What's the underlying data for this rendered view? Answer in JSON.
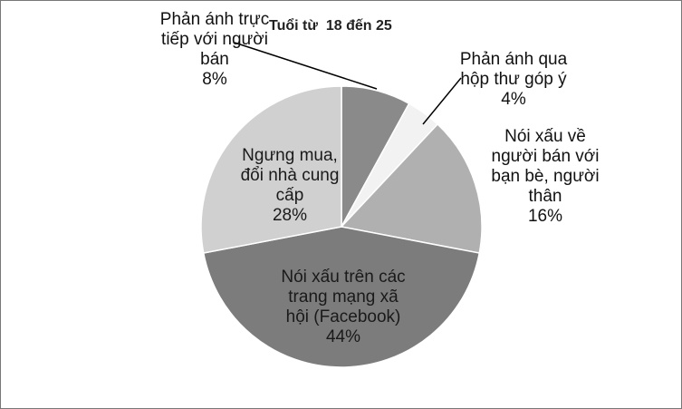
{
  "chart_data": {
    "type": "pie",
    "title": "Tuổi từ  18 đến 25",
    "slices": [
      {
        "label": "Phản ánh trực tiếp với người bán",
        "value": 8,
        "value_label": "8%",
        "color": "#8a8a8a",
        "label_lines": [
          "Phản ánh trực",
          "tiếp với người",
          "bán"
        ]
      },
      {
        "label": "Phản ánh qua hộp thư góp ý",
        "value": 4,
        "value_label": "4%",
        "color": "#f2f2f2",
        "label_lines": [
          "Phản ánh qua",
          "hộp thư góp ý"
        ]
      },
      {
        "label": "Nói xấu về người bán với bạn bè, người thân",
        "value": 16,
        "value_label": "16%",
        "color": "#b0b0b0",
        "label_lines": [
          "Nói xấu về",
          "người bán với",
          "bạn bè, người",
          "thân"
        ]
      },
      {
        "label": "Nói xấu trên các trang mạng xã hội (Facebook)",
        "value": 44,
        "value_label": "44%",
        "color": "#7c7c7c",
        "label_lines": [
          "Nói xấu trên các",
          "trang mạng xã",
          "hội (Facebook)"
        ]
      },
      {
        "label": "Ngưng mua, đổi nhà cung cấp",
        "value": 28,
        "value_label": "28%",
        "color": "#d0d0d0",
        "label_lines": [
          "Ngưng mua,",
          "đổi nhà cung",
          "cấp"
        ]
      }
    ]
  }
}
